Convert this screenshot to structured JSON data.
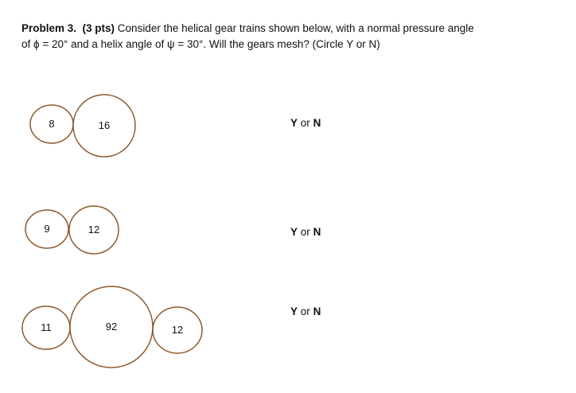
{
  "problem": {
    "label": "Problem 3.",
    "points": "(3 pts)",
    "line1_rest": " Consider the helical gear trains shown below, with a normal pressure angle",
    "line2": "of ϕ = 20° and a helix angle of ψ = 30°.  Will the gears mesh?  (Circle Y or N)"
  },
  "gear_color": "#8B5A2B",
  "trains": [
    {
      "gears": [
        "8",
        "16"
      ],
      "answer": {
        "y": "Y",
        "or": "or",
        "n": "N"
      }
    },
    {
      "gears": [
        "9",
        "12"
      ],
      "answer": {
        "y": "Y",
        "or": "or",
        "n": "N"
      }
    },
    {
      "gears": [
        "11",
        "92",
        "12"
      ],
      "answer": {
        "y": "Y",
        "or": "or",
        "n": "N"
      }
    }
  ]
}
